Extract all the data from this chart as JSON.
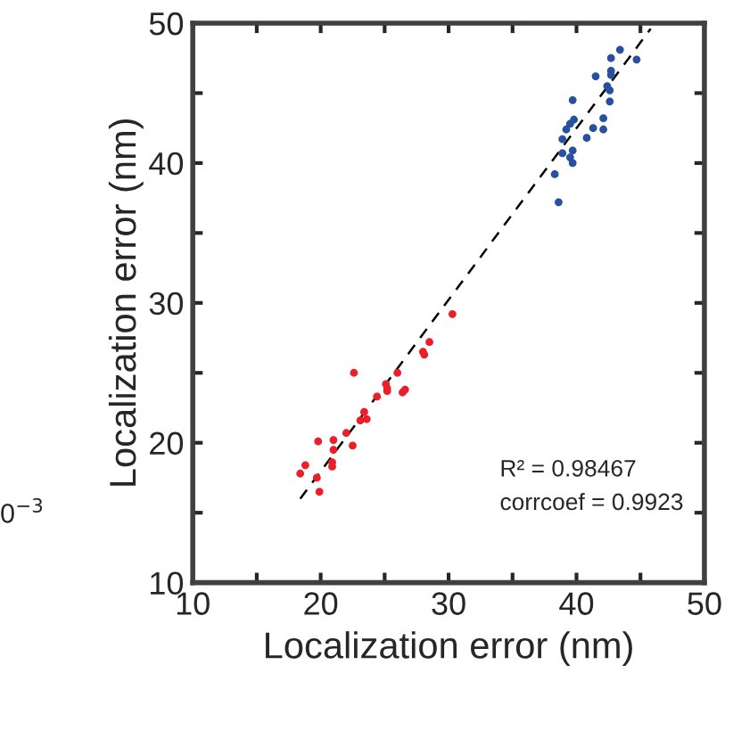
{
  "chart_data": {
    "type": "scatter",
    "xlabel": "Localization error (nm)",
    "ylabel": "Localization error (nm)",
    "series": [
      {
        "color": "#e8202a",
        "x": [
          18.4,
          18.8,
          19.7,
          19.9,
          19.8,
          20.9,
          20.9,
          21.0,
          21.0,
          22.0,
          22.5,
          22.6,
          23.4,
          23.6,
          23.1,
          24.4,
          25.1,
          25.2,
          25.2,
          26.0,
          26.4,
          26.6,
          28.0,
          28.1,
          28.5,
          30.3
        ],
        "values": [
          17.8,
          18.4,
          17.5,
          16.5,
          20.1,
          18.6,
          18.3,
          20.2,
          19.5,
          20.7,
          19.8,
          25.0,
          22.2,
          21.7,
          21.6,
          23.3,
          24.2,
          23.7,
          23.9,
          25.0,
          23.6,
          23.8,
          26.5,
          26.3,
          27.2,
          29.2
        ]
      },
      {
        "color": "#2850a0",
        "x": [
          43.4,
          44.7,
          42.7,
          42.7,
          42.7,
          41.5,
          42.4,
          42.6,
          42.6,
          39.7,
          42.1,
          41.3,
          42.1,
          39.8,
          39.5,
          39.2,
          40.8,
          38.9,
          39.7,
          38.9,
          39.5,
          39.7,
          38.3,
          38.6
        ],
        "values": [
          48.1,
          47.4,
          47.5,
          46.6,
          46.3,
          46.2,
          45.5,
          45.2,
          44.4,
          44.5,
          43.2,
          42.5,
          42.4,
          43.1,
          42.8,
          42.4,
          41.8,
          41.7,
          40.9,
          40.7,
          40.4,
          40.0,
          39.2,
          37.2
        ]
      },
      {
        "type": "line",
        "color": "#000000",
        "line_style": "dashed",
        "marker": "none",
        "x": [
          18.4,
          45.8
        ],
        "values": [
          16.0,
          49.6
        ]
      }
    ],
    "marker": "circle",
    "xlim": [
      10,
      50
    ],
    "ylim": [
      10,
      50
    ],
    "xticks": [
      10,
      {
        "value": 15,
        "label": null
      },
      20,
      {
        "value": 25,
        "label": null
      },
      30,
      {
        "value": 35,
        "label": null
      },
      40,
      {
        "value": 45,
        "label": null
      },
      50
    ],
    "yticks": [
      10,
      {
        "value": 15,
        "label": null
      },
      20,
      {
        "value": 25,
        "label": null
      },
      30,
      {
        "value": 35,
        "label": null
      },
      40,
      {
        "value": 45,
        "label": null
      },
      50
    ],
    "annotations": [
      "R² = 0.98467",
      "corrcoef = 0.9923",
      "0$^{−3}$"
    ]
  }
}
